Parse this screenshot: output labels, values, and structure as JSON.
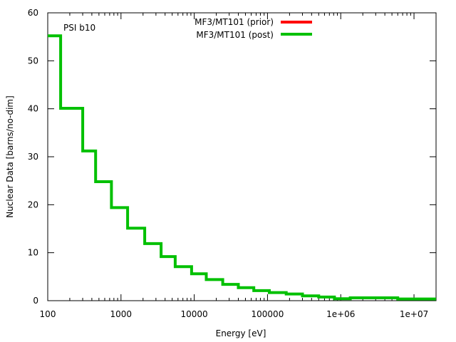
{
  "chart_data": {
    "type": "line",
    "style": "step",
    "title": "",
    "annotation": "PSI b10",
    "xlabel": "Energy [eV]",
    "ylabel": "Nuclear Data [barns/no-dim]",
    "xscale": "log",
    "xlim": [
      100,
      20000000
    ],
    "ylim": [
      0,
      60
    ],
    "grid": false,
    "legend_position": "top-center",
    "x_ticks": [
      {
        "value": 100,
        "label": "100"
      },
      {
        "value": 1000,
        "label": "1000"
      },
      {
        "value": 10000,
        "label": "10000"
      },
      {
        "value": 100000,
        "label": "100000"
      },
      {
        "value": 1000000,
        "label": "1e+06"
      },
      {
        "value": 10000000,
        "label": "1e+07"
      }
    ],
    "y_ticks": [
      {
        "value": 0,
        "label": "0"
      },
      {
        "value": 10,
        "label": "10"
      },
      {
        "value": 20,
        "label": "20"
      },
      {
        "value": 30,
        "label": "30"
      },
      {
        "value": 40,
        "label": "40"
      },
      {
        "value": 50,
        "label": "50"
      },
      {
        "value": 60,
        "label": "60"
      }
    ],
    "series": [
      {
        "name": "MF3/MT101 (prior)",
        "color": "#ff0000",
        "bin_edges": [],
        "values": []
      },
      {
        "name": "MF3/MT101 (post)",
        "color": "#00c000",
        "bin_edges": [
          100,
          150,
          300,
          450,
          740,
          1230,
          2110,
          3530,
          5500,
          9200,
          14600,
          24500,
          40000,
          65000,
          106000,
          180000,
          300000,
          500000,
          820000,
          1350000,
          6000000,
          20000000
        ],
        "values": [
          55.2,
          40.1,
          31.2,
          24.8,
          19.4,
          15.1,
          11.9,
          9.2,
          7.1,
          5.6,
          4.4,
          3.4,
          2.7,
          2.1,
          1.7,
          1.4,
          1.0,
          0.75,
          0.4,
          0.6,
          0.35
        ]
      }
    ]
  }
}
